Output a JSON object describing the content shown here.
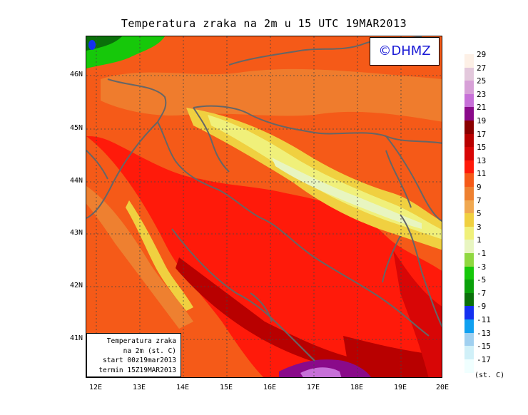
{
  "title": "Temperatura zraka na 2m u 15 UTC 19MAR2013",
  "watermark": "©DHMZ",
  "info_box": {
    "line1": "Temperatura zraka",
    "line2": "na 2m (st. C)",
    "line3": "start 00z19mar2013",
    "line4": "termin 15Z19MAR2013"
  },
  "axes": {
    "lat_ticks": [
      "46N",
      "45N",
      "44N",
      "43N",
      "42N",
      "41N"
    ],
    "lon_ticks": [
      "12E",
      "13E",
      "14E",
      "15E",
      "16E",
      "17E",
      "18E",
      "19E",
      "20E"
    ]
  },
  "legend": {
    "unit": "(st. C)",
    "levels": [
      {
        "label": "29",
        "color": "#fdf0e6"
      },
      {
        "label": "27",
        "color": "#e3c8dc"
      },
      {
        "label": "25",
        "color": "#d7a0d7"
      },
      {
        "label": "23",
        "color": "#c770d8"
      },
      {
        "label": "21",
        "color": "#8a0a8a"
      },
      {
        "label": "19",
        "color": "#8a0000"
      },
      {
        "label": "17",
        "color": "#b80000"
      },
      {
        "label": "15",
        "color": "#d80606"
      },
      {
        "label": "13",
        "color": "#ff1a0a"
      },
      {
        "label": "11",
        "color": "#f55a18"
      },
      {
        "label": "9",
        "color": "#ee8030"
      },
      {
        "label": "7",
        "color": "#f0a850"
      },
      {
        "label": "5",
        "color": "#f0d040"
      },
      {
        "label": "3",
        "color": "#f0f07a"
      },
      {
        "label": "1",
        "color": "#e8f5c0"
      },
      {
        "label": "-1",
        "color": "#90d840"
      },
      {
        "label": "-3",
        "color": "#16c80a"
      },
      {
        "label": "-5",
        "color": "#0aa00a"
      },
      {
        "label": "-7",
        "color": "#0a700a"
      },
      {
        "label": "-9",
        "color": "#1430f0"
      },
      {
        "label": "-11",
        "color": "#10a0f0"
      },
      {
        "label": "-13",
        "color": "#a0d0f0"
      },
      {
        "label": "-15",
        "color": "#d0f0f8"
      },
      {
        "label": "-17",
        "color": "#f0ffff"
      }
    ]
  }
}
